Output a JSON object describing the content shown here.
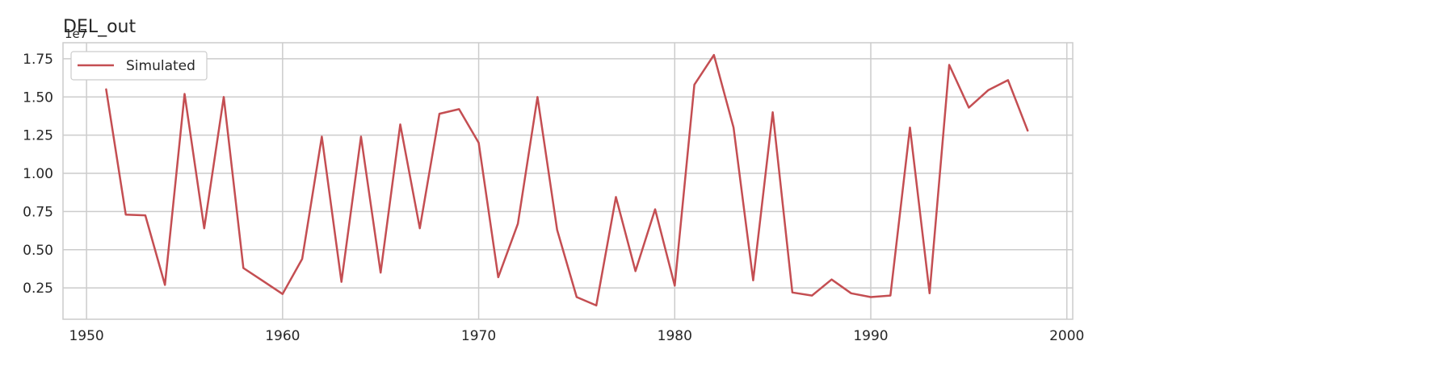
{
  "chart_data": {
    "type": "line",
    "title": "DEL_out",
    "offset_label": "1e7",
    "xlabel": "",
    "ylabel": "",
    "xlim": [
      1948.8,
      2000.3
    ],
    "ylim": [
      0.045,
      1.855
    ],
    "xticks": [
      1950,
      1960,
      1970,
      1980,
      1990,
      2000
    ],
    "xtick_labels": [
      "1950",
      "1960",
      "1970",
      "1980",
      "1990",
      "2000"
    ],
    "yticks": [
      0.25,
      0.5,
      0.75,
      1.0,
      1.25,
      1.5,
      1.75
    ],
    "ytick_labels": [
      "0.25",
      "0.50",
      "0.75",
      "1.00",
      "1.25",
      "1.50",
      "1.75"
    ],
    "grid": true,
    "legend": {
      "placement": "top-left"
    },
    "series": [
      {
        "name": "Simulated",
        "color": "#c44e52",
        "x": [
          1951,
          1952,
          1953,
          1954,
          1955,
          1956,
          1957,
          1958,
          1959,
          1960,
          1961,
          1962,
          1963,
          1964,
          1965,
          1966,
          1967,
          1968,
          1969,
          1970,
          1971,
          1972,
          1973,
          1974,
          1975,
          1976,
          1977,
          1978,
          1979,
          1980,
          1981,
          1982,
          1983,
          1984,
          1985,
          1986,
          1987,
          1988,
          1989,
          1990,
          1991,
          1992,
          1993,
          1994,
          1995,
          1996,
          1997,
          1998
        ],
        "values": [
          1.55,
          0.73,
          0.725,
          0.27,
          1.52,
          0.64,
          1.5,
          0.38,
          0.295,
          0.21,
          0.44,
          1.24,
          0.29,
          1.24,
          0.35,
          1.32,
          0.64,
          1.39,
          1.42,
          1.2,
          0.32,
          0.67,
          1.5,
          0.63,
          0.19,
          0.135,
          0.845,
          0.36,
          0.765,
          0.265,
          1.58,
          1.775,
          1.3,
          0.3,
          1.4,
          0.22,
          0.2,
          0.305,
          0.215,
          0.19,
          0.2,
          1.3,
          0.215,
          1.71,
          1.43,
          1.545,
          1.61,
          1.28
        ]
      }
    ]
  }
}
